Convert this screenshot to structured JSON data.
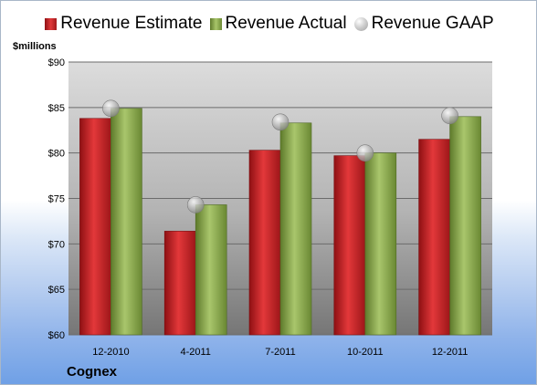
{
  "legend": {
    "estimate": "Revenue Estimate",
    "actual": "Revenue Actual",
    "gaap": "Revenue GAAP"
  },
  "unit_label": "$millions",
  "company": "Cognex",
  "colors": {
    "estimate": "#c8161d",
    "actual": "#8aab4a",
    "gaap": "#b9b9b9",
    "plot_top": "#d9d9d9",
    "plot_bottom": "#7f7f7f"
  },
  "chart_data": {
    "type": "bar",
    "categories": [
      "12-2010",
      "4-2011",
      "7-2011",
      "10-2011",
      "12-2011"
    ],
    "series": [
      {
        "name": "Revenue Estimate",
        "values": [
          83.8,
          71.4,
          80.3,
          79.7,
          81.5
        ]
      },
      {
        "name": "Revenue Actual",
        "values": [
          84.9,
          74.3,
          83.3,
          80.0,
          84.0
        ]
      },
      {
        "name": "Revenue GAAP",
        "marker": "circle",
        "values": [
          84.9,
          74.3,
          83.4,
          80.0,
          84.1
        ]
      }
    ],
    "yticks": [
      "$60",
      "$65",
      "$70",
      "$75",
      "$80",
      "$85",
      "$90"
    ],
    "ylim": [
      60,
      90
    ],
    "ylabel": "$millions",
    "grid": true,
    "legend_position": "top"
  }
}
